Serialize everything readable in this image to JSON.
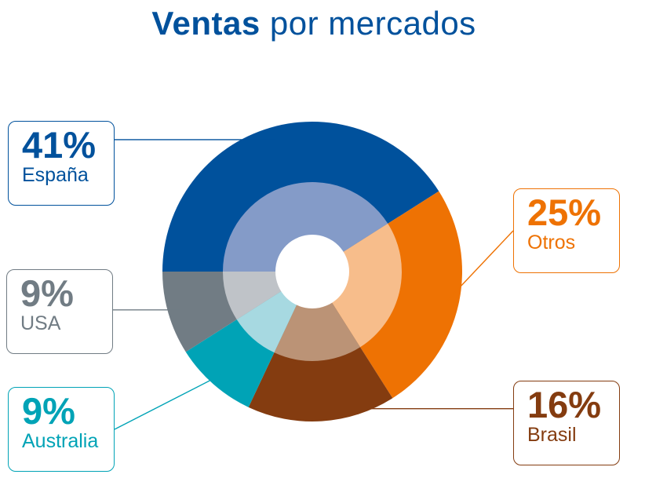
{
  "title": {
    "bold": "Ventas",
    "rest": "por mercados"
  },
  "chart_data": {
    "type": "pie",
    "title": "Ventas por mercados",
    "series": [
      {
        "name": "España",
        "value": 41,
        "label": "41%",
        "color": "#00519c",
        "inner_color": "#849bc8"
      },
      {
        "name": "Otros",
        "value": 25,
        "label": "25%",
        "color": "#ee7203",
        "inner_color": "#f7bd8b"
      },
      {
        "name": "Brasil",
        "value": 16,
        "label": "16%",
        "color": "#843c10",
        "inner_color": "#bb9376"
      },
      {
        "name": "Australia",
        "value": 9,
        "label": "9%",
        "color": "#00a3b6",
        "inner_color": "#a7d9e1"
      },
      {
        "name": "USA",
        "value": 9,
        "label": "9%",
        "color": "#717c84",
        "inner_color": "#bfc3c8"
      }
    ]
  }
}
